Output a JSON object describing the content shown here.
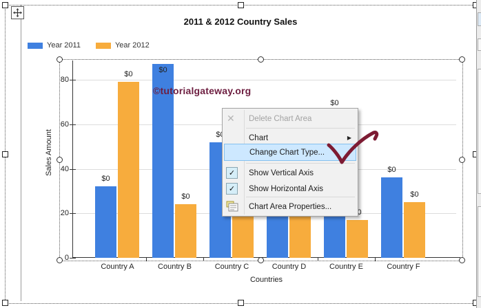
{
  "chart": {
    "title": "2011 & 2012 Country Sales",
    "watermark": "©tutorialgateway.org",
    "legend": [
      {
        "label": "Year 2011",
        "color": "#3f80e0"
      },
      {
        "label": "Year 2012",
        "color": "#f7ac3d"
      }
    ],
    "y_axis_title": "Sales Amount",
    "x_axis_title": "Countries"
  },
  "chart_data": {
    "type": "bar",
    "title": "2011 & 2012 Country Sales",
    "categories": [
      "Country A",
      "Country B",
      "Country C",
      "Country D",
      "Country E",
      "Country F"
    ],
    "series": [
      {
        "name": "Year 2011",
        "color": "#3f80e0",
        "values": [
          32,
          87,
          52,
          48,
          66,
          36
        ]
      },
      {
        "name": "Year 2012",
        "color": "#f7ac3d",
        "values": [
          79,
          24,
          43,
          30,
          17,
          25
        ]
      }
    ],
    "xlabel": "Countries",
    "ylabel": "Sales Amount",
    "y_ticks": [
      0,
      20,
      40,
      60,
      80
    ],
    "ylim": [
      0,
      88
    ],
    "grid": "horizontal",
    "legend_position": "top-left",
    "bar_value_label": "$0",
    "note": "Country C (Year 2012) and Country D (both series) bar tops are occluded by the context menu; their values are estimates"
  },
  "context_menu": {
    "items": [
      {
        "label": "Delete Chart Area",
        "disabled": true,
        "icon": "delete-x-icon"
      },
      {
        "label": "Chart",
        "submenu": true
      },
      {
        "label": "Change Chart Type...",
        "highlighted": true
      },
      {
        "label": "Show Vertical Axis",
        "checked": true
      },
      {
        "label": "Show Horizontal Axis",
        "checked": true
      },
      {
        "label": "Chart Area Properties...",
        "icon": "properties-icon"
      }
    ]
  },
  "annotation": {
    "type": "hand-drawn checkmark",
    "target": "Change Chart Type...",
    "color": "#7d1b33"
  }
}
